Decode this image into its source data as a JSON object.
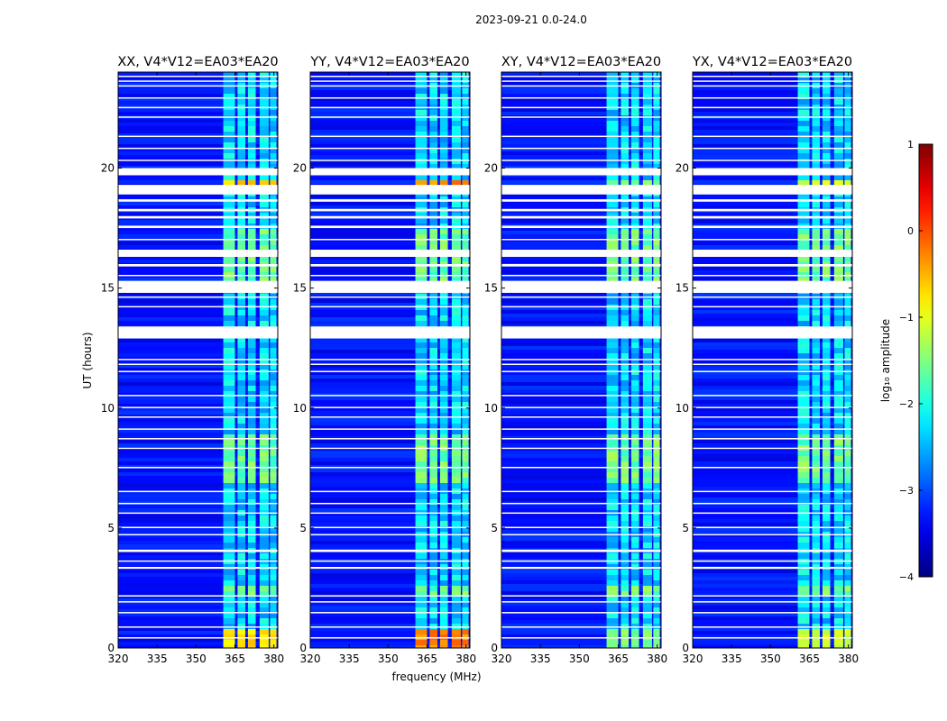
{
  "suptitle": "2023-09-21 0.0-24.0",
  "chart_data": {
    "type": "heatmap",
    "xlabel": "frequency (MHz)",
    "ylabel": "UT (hours)",
    "xlim": [
      320,
      381.5
    ],
    "ylim": [
      0,
      24
    ],
    "xticks": [
      320,
      335,
      350,
      365,
      380
    ],
    "yticks": [
      0,
      5,
      10,
      15,
      20
    ],
    "xtick_labels": [
      "320",
      "335",
      "350",
      "365",
      "380"
    ],
    "ytick_labels": [
      "0",
      "5",
      "10",
      "15",
      "20"
    ],
    "panels": [
      {
        "title": "XX, V4*V12=EA03*EA20",
        "polarization": "XX",
        "peak_log_amplitude": -0.5
      },
      {
        "title": "YY, V4*V12=EA03*EA20",
        "polarization": "YY",
        "peak_log_amplitude": -0.1
      },
      {
        "title": "XY, V4*V12=EA03*EA20",
        "polarization": "XY",
        "peak_log_amplitude": -1.3
      },
      {
        "title": "YX, V4*V12=EA03*EA20",
        "polarization": "YX",
        "peak_log_amplitude": -0.9
      }
    ],
    "background_log_amplitude": -3.3,
    "rfi_channels_mhz": [
      [
        360.5,
        365
      ],
      [
        366,
        369
      ],
      [
        370,
        373
      ],
      [
        374.5,
        378
      ],
      [
        378.5,
        381
      ]
    ],
    "flagged_ut_ranges": [
      [
        0.4,
        0.45
      ],
      [
        0.85,
        0.9
      ],
      [
        1.45,
        1.5
      ],
      [
        1.9,
        1.95
      ],
      [
        2.15,
        2.2
      ],
      [
        3.3,
        3.38
      ],
      [
        3.6,
        3.65
      ],
      [
        4.0,
        4.1
      ],
      [
        4.7,
        4.75
      ],
      [
        5.0,
        5.05
      ],
      [
        5.6,
        5.65
      ],
      [
        6.0,
        6.05
      ],
      [
        6.5,
        6.55
      ],
      [
        7.5,
        7.55
      ],
      [
        8.3,
        8.35
      ],
      [
        8.7,
        8.75
      ],
      [
        9.1,
        9.15
      ],
      [
        9.6,
        9.65
      ],
      [
        10.0,
        10.05
      ],
      [
        10.5,
        10.55
      ],
      [
        11.5,
        11.55
      ],
      [
        11.8,
        11.85
      ],
      [
        12.0,
        12.05
      ],
      [
        12.9,
        13.4
      ],
      [
        14.2,
        14.25
      ],
      [
        14.6,
        14.65
      ],
      [
        14.8,
        15.3
      ],
      [
        15.5,
        15.55
      ],
      [
        15.9,
        16.0
      ],
      [
        16.3,
        16.6
      ],
      [
        17.0,
        17.05
      ],
      [
        17.5,
        17.6
      ],
      [
        17.9,
        18.0
      ],
      [
        18.2,
        18.3
      ],
      [
        18.6,
        18.7
      ],
      [
        18.9,
        19.3
      ],
      [
        19.7,
        20.0
      ],
      [
        20.3,
        20.35
      ],
      [
        20.8,
        20.85
      ],
      [
        21.3,
        21.35
      ],
      [
        22.1,
        22.15
      ],
      [
        22.5,
        22.55
      ],
      [
        22.9,
        22.95
      ],
      [
        23.4,
        23.45
      ],
      [
        23.6,
        23.65
      ],
      [
        23.8,
        23.85
      ]
    ],
    "colorbar": {
      "label": "log₁₀ amplitude",
      "range": [
        -4,
        1
      ],
      "ticks": [
        1,
        0,
        -1,
        -2,
        -3,
        -4
      ],
      "tick_labels": [
        "1",
        "0",
        "−1",
        "−2",
        "−3",
        "−4"
      ],
      "colormap": "jet"
    }
  }
}
